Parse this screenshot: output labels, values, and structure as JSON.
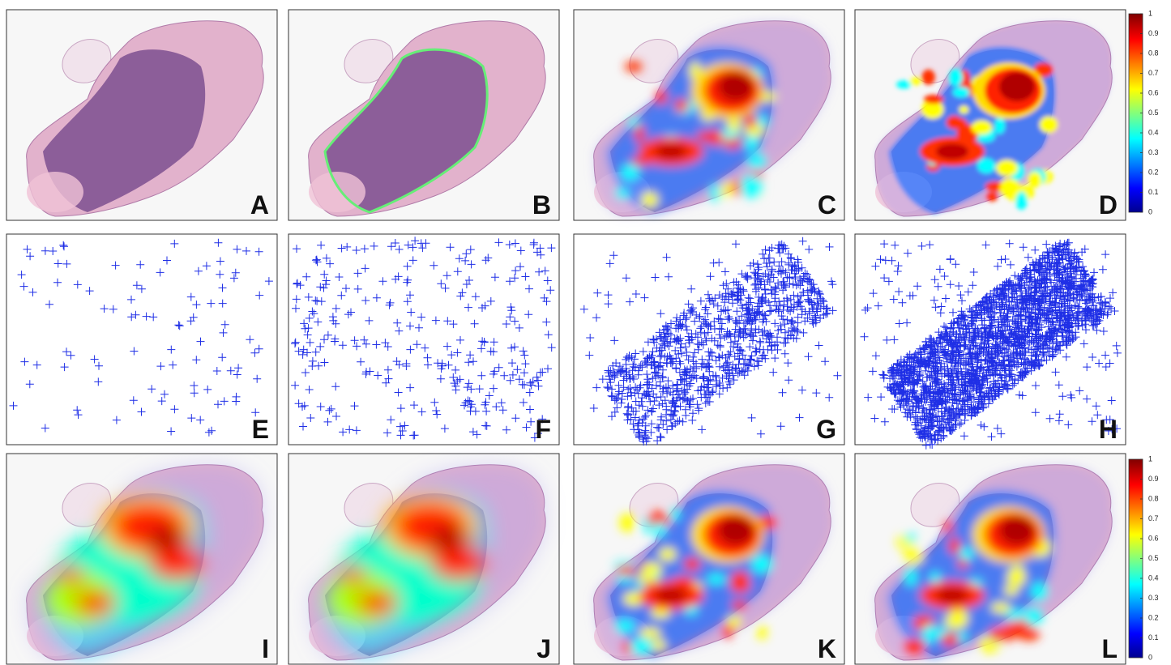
{
  "panels": [
    "A",
    "B",
    "C",
    "D",
    "E",
    "F",
    "G",
    "H",
    "I",
    "J",
    "K",
    "L"
  ],
  "colorbars": [
    {
      "lim": [
        0,
        1
      ],
      "ticks": [
        0,
        0.1,
        0.2,
        0.3,
        0.4,
        0.5,
        0.6,
        0.7,
        0.8,
        0.9,
        1
      ]
    },
    {
      "lim": [
        0,
        1
      ],
      "ticks": [
        0,
        0.1,
        0.2,
        0.3,
        0.4,
        0.5,
        0.6,
        0.7,
        0.8,
        0.9,
        1
      ]
    }
  ]
}
